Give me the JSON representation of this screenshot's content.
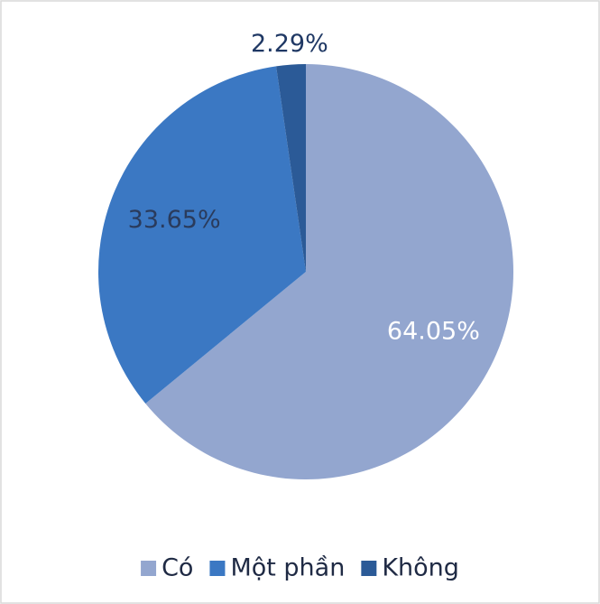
{
  "chart_data": {
    "type": "pie",
    "categories": [
      "Có",
      "Một phần",
      "Không"
    ],
    "values": [
      64.05,
      33.65,
      2.29
    ],
    "value_labels": [
      "64.05%",
      "33.65%",
      "2.29%"
    ],
    "colors": [
      "#93a6cf",
      "#3b78c3",
      "#2b5a97"
    ],
    "legend": "bottom"
  }
}
